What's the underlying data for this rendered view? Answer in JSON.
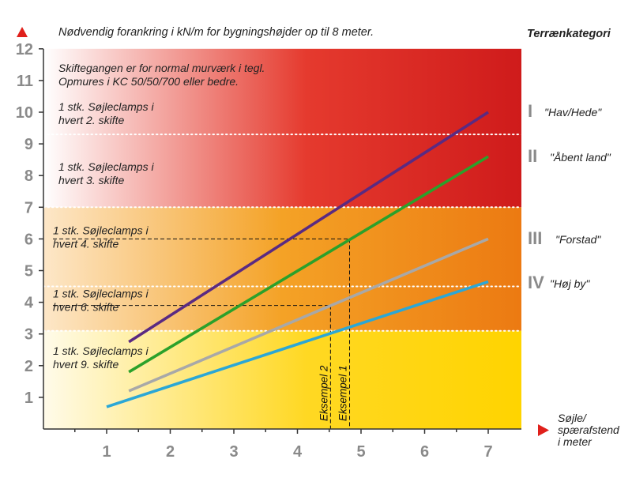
{
  "chart_data": {
    "type": "line",
    "title": "Nødvendig forankring i kN/m for bygningshøjder op til 8 meter.",
    "legend_title": "Terrænkategori",
    "xlabel": "Søjle/ spærafstend i meter",
    "xlabel_lines": [
      "Søjle/",
      "spærafstend",
      "i meter"
    ],
    "ylabel": "",
    "xlim": [
      0.2,
      7.5
    ],
    "ylim": [
      0,
      12
    ],
    "x_ticks": [
      1,
      2,
      3,
      4,
      5,
      6,
      7
    ],
    "y_ticks": [
      1,
      2,
      3,
      4,
      5,
      6,
      7,
      8,
      9,
      10,
      11,
      12
    ],
    "grid": false,
    "series": [
      {
        "name": "\"Hav/Hede\"",
        "roman": "I",
        "color": "#5a2a82",
        "x": [
          1.35,
          7
        ],
        "y": [
          2.75,
          10.0
        ]
      },
      {
        "name": "\"Åbent land\"",
        "roman": "II",
        "color": "#2ba12b",
        "x": [
          1.35,
          7
        ],
        "y": [
          1.8,
          8.6
        ]
      },
      {
        "name": "\"Forstad\"",
        "roman": "III",
        "color": "#a8a8a8",
        "x": [
          1.35,
          7
        ],
        "y": [
          1.2,
          6.0
        ]
      },
      {
        "name": "\"Høj by\"",
        "roman": "IV",
        "color": "#2ba7d6",
        "x": [
          1,
          7
        ],
        "y": [
          0.7,
          4.65
        ]
      }
    ],
    "bands": [
      {
        "from": 9.3,
        "to": 12,
        "lines": [
          "1 stk. Søjleclamps i",
          "hvert 2. skifte"
        ],
        "label_y": 10.05,
        "dotted_bottom": true
      },
      {
        "from": 7.0,
        "to": 9.3,
        "lines": [
          "1 stk. Søjleclamps i",
          "hvert 3. skifte"
        ],
        "label_y": 8.15,
        "dotted_bottom": true
      },
      {
        "from": 4.5,
        "to": 7.0,
        "lines": [
          "1 stk. Søjleclamps i",
          "hvert 4. skifte"
        ],
        "label_y": 6.15,
        "dotted_bottom": true
      },
      {
        "from": 3.1,
        "to": 4.5,
        "lines": [
          "1 stk. Søjleclamps i",
          "hvert 6. skifte"
        ],
        "label_y": 4.15,
        "dotted_bottom": true
      },
      {
        "from": 0,
        "to": 3.1,
        "lines": [
          "1 stk. Søjleclamps i",
          "hvert 9. skifte"
        ],
        "label_y": 2.35,
        "dotted_bottom": false
      }
    ],
    "note_lines": [
      "Skiftegangen er for normal murværk i tegl.",
      "Opmures i KC 50/50/700 eller bedre."
    ],
    "examples": [
      {
        "label": "Eksempel 1",
        "x": 4.82,
        "y": 6.0
      },
      {
        "label": "Eksempel 2",
        "x": 4.52,
        "y": 3.9
      }
    ]
  }
}
